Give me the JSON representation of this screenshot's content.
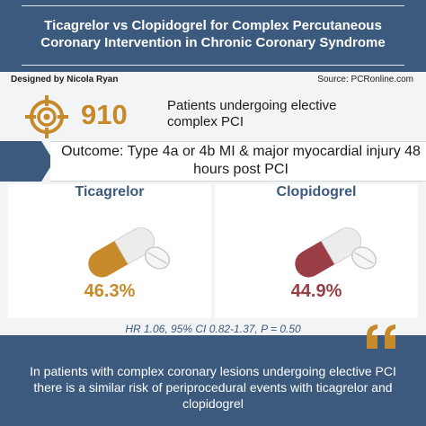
{
  "header": {
    "title": "Ticagrelor vs Clopidogrel for Complex Percutaneous Coronary Intervention in Chronic Coronary Syndrome"
  },
  "meta": {
    "credit": "Designed by Nicola Ryan",
    "source": "Source: PCRonline.com"
  },
  "population": {
    "count": "910",
    "description": "Patients undergoing elective complex PCI",
    "icon": "target-icon"
  },
  "outcome": {
    "text": "Outcome: Type 4a or 4b MI & major myocardial injury 48 hours post PCI"
  },
  "arms": [
    {
      "name": "Ticagrelor",
      "percent": "46.3%",
      "color": "#c68a2b",
      "icon": "capsule-icon"
    },
    {
      "name": "Clopidogrel",
      "percent": "44.9%",
      "color": "#9b3d45",
      "icon": "capsule-icon"
    }
  ],
  "stats": "HR 1.06, 95% CI 0.82-1.37, P = 0.50",
  "conclusion": "In patients with complex coronary lesions undergoing elective PCI there is a similar risk of periprocedural events with ticagrelor and clopidogrel",
  "colors": {
    "navy": "#3c5a7d",
    "gold": "#c68a2b",
    "maroon": "#9b3d45"
  }
}
